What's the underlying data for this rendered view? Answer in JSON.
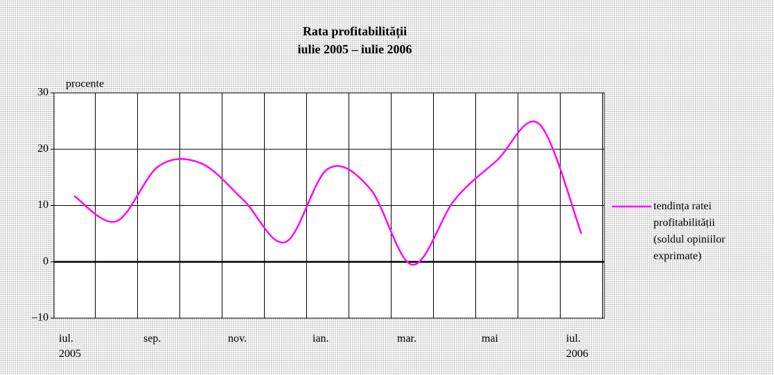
{
  "chart_data": {
    "type": "line",
    "title": "Rata profitabilității",
    "subtitle": "iulie 2005 – iulie 2006",
    "y_axis_label": "procente",
    "categories": [
      "iul.\n2005",
      null,
      "sep.",
      null,
      "nov.",
      null,
      "ian.",
      null,
      "mar.",
      null,
      "mai",
      null,
      "iul.\n2006"
    ],
    "series": [
      {
        "name": "tendința ratei profitabilității (soldul opiniilor exprimate)",
        "color": "#ff00ff",
        "values": [
          11.7,
          7.2,
          17,
          17.5,
          11,
          3.5,
          16.5,
          13,
          -0.5,
          11,
          18,
          24.5,
          5
        ]
      }
    ],
    "ylim": [
      -10,
      30
    ],
    "yticks": [
      {
        "value": -10,
        "label": "–10"
      },
      0,
      10,
      20,
      30
    ],
    "grid": true,
    "legend": "right"
  }
}
